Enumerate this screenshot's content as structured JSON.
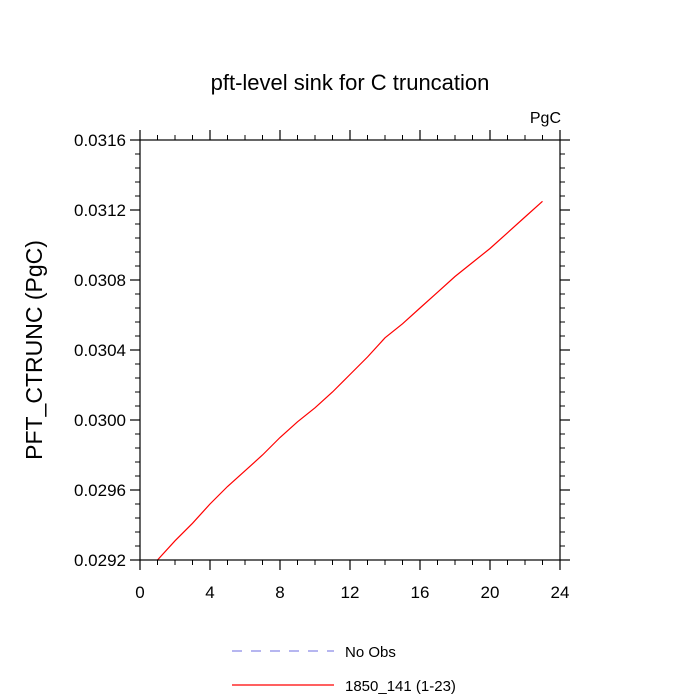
{
  "chart_data": {
    "type": "line",
    "title": "pft-level sink for C truncation",
    "units_label": "PgC",
    "xlabel": "",
    "ylabel": "PFT_CTRUNC  (PgC)",
    "xlim": [
      0,
      24
    ],
    "ylim": [
      0.0292,
      0.0316
    ],
    "x_ticks": [
      0,
      4,
      8,
      12,
      16,
      20,
      24
    ],
    "x_tick_labels": [
      "0",
      "4",
      "8",
      "12",
      "16",
      "20",
      "24"
    ],
    "y_ticks": [
      0.0292,
      0.0296,
      0.03,
      0.0304,
      0.0308,
      0.0312,
      0.0316
    ],
    "y_tick_labels": [
      "0.0292",
      "0.0296",
      "0.0300",
      "0.0304",
      "0.0308",
      "0.0312",
      "0.0316"
    ],
    "grid": false,
    "legend_position": "bottom",
    "legend": [
      {
        "label": "No Obs",
        "color": "#8a8ae6",
        "dash": "dashed"
      },
      {
        "label": "1850_141 (1-23)",
        "color": "#ff0000",
        "dash": "solid"
      }
    ],
    "series": [
      {
        "name": "1850_141 (1-23)",
        "color": "#ff0000",
        "x": [
          1,
          2,
          3,
          4,
          5,
          6,
          7,
          8,
          9,
          10,
          11,
          12,
          13,
          14,
          15,
          16,
          17,
          18,
          19,
          20,
          21,
          22,
          23
        ],
        "y": [
          0.0292,
          0.02931,
          0.02941,
          0.02952,
          0.02962,
          0.02971,
          0.0298,
          0.0299,
          0.02999,
          0.03007,
          0.03016,
          0.03026,
          0.03036,
          0.03047,
          0.03055,
          0.03064,
          0.03073,
          0.03082,
          0.0309,
          0.03098,
          0.03107,
          0.03116,
          0.03125
        ]
      }
    ]
  }
}
